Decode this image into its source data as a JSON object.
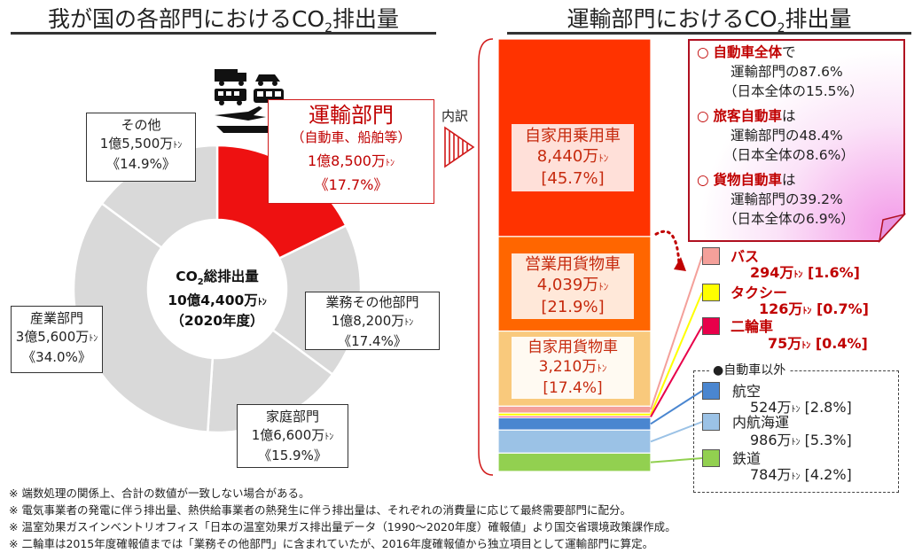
{
  "left": {
    "title": "我が国の各部門におけるCO",
    "title_sub": "2",
    "title_tail": "排出量"
  },
  "right": {
    "title": "運輸部門におけるCO",
    "title_sub": "2",
    "title_tail": "排出量"
  },
  "center": {
    "line1": "CO",
    "line1_sub": "2",
    "line1_tail": "総排出量",
    "line2": "10億4,400万",
    "line2_unit": "ﾄﾝ",
    "line3": "（2020年度）"
  },
  "uchiwake": "内訳",
  "transport_label": {
    "name": "運輸部門",
    "detail": "（自動車、船舶等）",
    "amount": "1億8,500万",
    "unit": "ﾄﾝ",
    "share": "《17.7%》"
  },
  "pie_labels": {
    "other": {
      "name": "その他",
      "amount": "1億5,500万",
      "unit": "ﾄﾝ",
      "share": "《14.9%》"
    },
    "business": {
      "name": "業務その他部門",
      "amount": "1億8,200万",
      "unit": "ﾄﾝ",
      "share": "《17.4%》"
    },
    "household": {
      "name": "家庭部門",
      "amount": "1億6,600万",
      "unit": "ﾄﾝ",
      "share": "《15.9%》"
    },
    "industry": {
      "name": "産業部門",
      "amount": "3億5,600万",
      "unit": "ﾄﾝ",
      "share": "《34.0%》"
    }
  },
  "bar_labels": {
    "private_car": {
      "name": "自家用乗用車",
      "amount": "8,440万",
      "unit": "ﾄﾝ",
      "share": "[45.7%]"
    },
    "commercial_truck": {
      "name": "営業用貨物車",
      "amount": "4,039万",
      "unit": "ﾄﾝ",
      "share": "[21.9%]"
    },
    "private_truck": {
      "name": "自家用貨物車",
      "amount": "3,210万",
      "unit": "ﾄﾝ",
      "share": "[17.4%]"
    }
  },
  "callout": {
    "l1_bold": "自動車全体",
    "l1_tail": "で",
    "l2": "運輸部門の87.6%",
    "l3": "（日本全体の15.5%）",
    "l4_bold": "旅客自動車",
    "l4_tail": "は",
    "l5": "運輸部門の48.4%",
    "l6": "（日本全体の8.6%）",
    "l7_bold": "貨物自動車",
    "l7_tail": "は",
    "l8": "運輸部門の39.2%",
    "l9": "（日本全体の6.9%）",
    "bullet": "○"
  },
  "small_legend": {
    "bus": {
      "name": "バス",
      "amount": "294万",
      "unit": "ﾄﾝ",
      "share": "[1.6%]"
    },
    "taxi": {
      "name": "タクシー",
      "amount": "126万",
      "unit": "ﾄﾝ",
      "share": "[0.7%]"
    },
    "bike": {
      "name": "二輪車",
      "amount": "75万",
      "unit": "ﾄﾝ",
      "share": "[0.4%]"
    }
  },
  "non_auto": {
    "header": "●自動車以外",
    "air": {
      "name": "航空",
      "amount": "524万",
      "unit": "ﾄﾝ",
      "share": "[2.8%]"
    },
    "ship": {
      "name": "内航海運",
      "amount": "986万",
      "unit": "ﾄﾝ",
      "share": "[5.3%]"
    },
    "rail": {
      "name": "鉄道",
      "amount": "784万",
      "unit": "ﾄﾝ",
      "share": "[4.2%]"
    }
  },
  "notes": [
    "※ 端数処理の関係上、合計の数値が一致しない場合がある。",
    "※ 電気事業者の発電に伴う排出量、熱供給事業者の熱発生に伴う排出量は、それぞれの消費量に応じて最終需要部門に配分。",
    "※ 温室効果ガスインベントリオフィス「日本の温室効果ガス排出量データ（1990～2020年度）確報値」より国交省環境政策課作成。",
    "※ 二輪車は2015年度確報値までは「業務その他部門」に含まれていたが、2016年度確報値から独立項目として運輸部門に算定。"
  ],
  "colors": {
    "transport": "#ee1111",
    "other_sectors": "#d9d9d9",
    "private_car": "#ff3300",
    "commercial_truck": "#ff6600",
    "private_truck": "#f9c97c",
    "bus": "#f4a09a",
    "taxi": "#ffff00",
    "bike": "#e8004a",
    "air": "#4a86d0",
    "ship": "#9bc2e6",
    "rail": "#92d050",
    "accent": "#c00000"
  },
  "chart_data": [
    {
      "type": "pie",
      "title": "我が国の各部門におけるCO2排出量",
      "total": "10億4,400万ﾄﾝ（2020年度）",
      "categories": [
        "運輸部門",
        "業務その他部門",
        "家庭部門",
        "産業部門",
        "その他"
      ],
      "values": [
        18500,
        18200,
        16600,
        35600,
        15500
      ],
      "unit": "万ﾄﾝ",
      "shares": [
        17.7,
        17.4,
        15.9,
        34.0,
        14.9
      ]
    },
    {
      "type": "bar",
      "stacked": true,
      "title": "運輸部門におけるCO2排出量",
      "categories": [
        "自家用乗用車",
        "営業用貨物車",
        "自家用貨物車",
        "バス",
        "タクシー",
        "二輪車",
        "航空",
        "内航海運",
        "鉄道"
      ],
      "values": [
        8440,
        4039,
        3210,
        294,
        126,
        75,
        524,
        986,
        784
      ],
      "unit": "万ﾄﾝ",
      "shares": [
        45.7,
        21.9,
        17.4,
        1.6,
        0.7,
        0.4,
        2.8,
        5.3,
        4.2
      ]
    }
  ]
}
